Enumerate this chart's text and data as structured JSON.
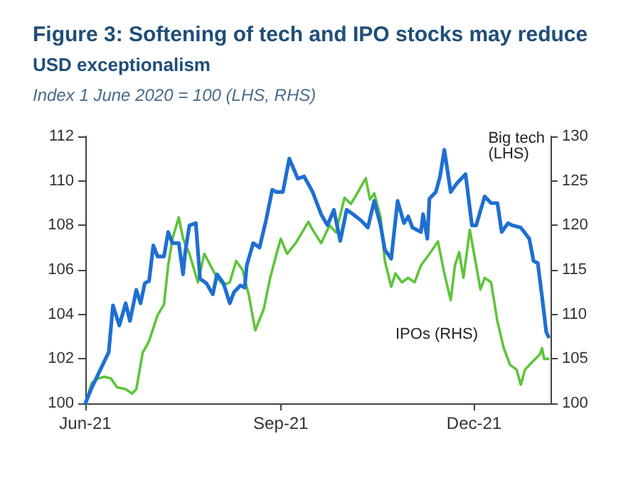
{
  "chart_data": {
    "type": "line",
    "title": "Figure 3: Softening of tech and IPO stocks may reduce\nUSD exceptionalism",
    "subtitle": "Index 1 June 2020 = 100 (LHS, RHS)",
    "xlim": [
      "2021-06-01",
      "2022-01-06"
    ],
    "xticks": [
      {
        "value": "2021-06-01",
        "label": "Jun-21"
      },
      {
        "value": "2021-09-01",
        "label": "Sep-21"
      },
      {
        "value": "2021-12-01",
        "label": "Dec-21"
      }
    ],
    "ylim": [
      100,
      112
    ],
    "yticks": [
      100,
      102,
      104,
      106,
      108,
      110,
      112
    ],
    "y2lim": [
      100,
      130
    ],
    "y2ticks": [
      100,
      105,
      110,
      115,
      120,
      125,
      130
    ],
    "grid": false,
    "marker": "none",
    "line_style": "solid",
    "series": [
      {
        "name": "Big tech (LHS)",
        "color": "#1f6fd1",
        "x": [
          "2021-06-01",
          "2021-06-04",
          "2021-06-09",
          "2021-06-12",
          "2021-06-14",
          "2021-06-17",
          "2021-06-20",
          "2021-06-22",
          "2021-06-25",
          "2021-06-27",
          "2021-06-29",
          "2021-07-01",
          "2021-07-03",
          "2021-07-05",
          "2021-07-08",
          "2021-07-10",
          "2021-07-12",
          "2021-07-15",
          "2021-07-17",
          "2021-07-18",
          "2021-07-20",
          "2021-07-23",
          "2021-07-25",
          "2021-07-28",
          "2021-07-31",
          "2021-08-02",
          "2021-08-05",
          "2021-08-08",
          "2021-08-10",
          "2021-08-13",
          "2021-08-15",
          "2021-08-16",
          "2021-08-19",
          "2021-08-22",
          "2021-08-25",
          "2021-08-28",
          "2021-08-30",
          "2021-09-02",
          "2021-09-05",
          "2021-09-09",
          "2021-09-12",
          "2021-09-16",
          "2021-09-20",
          "2021-09-23",
          "2021-09-26",
          "2021-09-29",
          "2021-10-02",
          "2021-10-05",
          "2021-10-09",
          "2021-10-12",
          "2021-10-15",
          "2021-10-18",
          "2021-10-20",
          "2021-10-23",
          "2021-10-26",
          "2021-10-29",
          "2021-10-31",
          "2021-11-02",
          "2021-11-06",
          "2021-11-07",
          "2021-11-09",
          "2021-11-10",
          "2021-11-13",
          "2021-11-15",
          "2021-11-17",
          "2021-11-20",
          "2021-11-23",
          "2021-11-27",
          "2021-11-30",
          "2021-12-02",
          "2021-12-06",
          "2021-12-09",
          "2021-12-12",
          "2021-12-14",
          "2021-12-17",
          "2021-12-19",
          "2021-12-23",
          "2021-12-27",
          "2021-12-29",
          "2021-12-31",
          "2022-01-02",
          "2022-01-04",
          "2022-01-05"
        ],
        "values": [
          100,
          100.7,
          101.7,
          102.3,
          104.4,
          103.5,
          104.5,
          103.7,
          105.1,
          104.5,
          105.4,
          105.5,
          107.1,
          106.6,
          106.6,
          107.7,
          107.2,
          107.2,
          105.8,
          106.8,
          108.0,
          108.1,
          105.6,
          105.4,
          104.9,
          105.8,
          105.4,
          104.5,
          105.0,
          105.3,
          105.2,
          106.2,
          107.2,
          107.0,
          108.2,
          109.6,
          109.5,
          109.5,
          111.0,
          110.1,
          110.2,
          109.5,
          108.5,
          108.0,
          108.7,
          107.3,
          108.7,
          108.5,
          108.2,
          107.9,
          109.1,
          108.0,
          106.9,
          106.5,
          109.1,
          108.1,
          108.4,
          107.9,
          107.7,
          108.5,
          107.4,
          109.2,
          109.5,
          110.2,
          111.4,
          109.5,
          109.9,
          110.3,
          108.0,
          108.0,
          109.3,
          109.0,
          109.0,
          107.7,
          108.1,
          108.0,
          107.9,
          107.4,
          106.4,
          106.3,
          104.8,
          103.2,
          103.0
        ]
      },
      {
        "name": "IPOs (RHS)",
        "color": "#5ec43a",
        "axis": "y2",
        "x": [
          "2021-06-01",
          "2021-06-04",
          "2021-06-07",
          "2021-06-10",
          "2021-06-13",
          "2021-06-16",
          "2021-06-20",
          "2021-06-23",
          "2021-06-25",
          "2021-06-28",
          "2021-07-01",
          "2021-07-05",
          "2021-07-08",
          "2021-07-10",
          "2021-07-12",
          "2021-07-15",
          "2021-07-17",
          "2021-07-20",
          "2021-07-24",
          "2021-07-27",
          "2021-07-31",
          "2021-08-02",
          "2021-08-05",
          "2021-08-08",
          "2021-08-11",
          "2021-08-14",
          "2021-08-17",
          "2021-08-20",
          "2021-08-24",
          "2021-08-27",
          "2021-08-30",
          "2021-09-01",
          "2021-09-04",
          "2021-09-08",
          "2021-09-11",
          "2021-09-14",
          "2021-09-16",
          "2021-09-20",
          "2021-09-24",
          "2021-09-27",
          "2021-10-01",
          "2021-10-04",
          "2021-10-07",
          "2021-10-11",
          "2021-10-13",
          "2021-10-15",
          "2021-10-18",
          "2021-10-20",
          "2021-10-23",
          "2021-10-25",
          "2021-10-28",
          "2021-10-31",
          "2021-11-03",
          "2021-11-06",
          "2021-11-10",
          "2021-11-14",
          "2021-11-17",
          "2021-11-20",
          "2021-11-22",
          "2021-11-24",
          "2021-11-26",
          "2021-11-29",
          "2021-12-02",
          "2021-12-04",
          "2021-12-06",
          "2021-12-09",
          "2021-12-12",
          "2021-12-15",
          "2021-12-18",
          "2021-12-21",
          "2021-12-23",
          "2021-12-25",
          "2021-12-29",
          "2022-01-01",
          "2022-01-02",
          "2022-01-03",
          "2022-01-05"
        ],
        "values": [
          100,
          102.3,
          102.8,
          103.0,
          102.8,
          101.8,
          101.6,
          101.1,
          101.6,
          105.7,
          107.0,
          109.9,
          111.1,
          115.5,
          118.5,
          120.9,
          118.5,
          116.8,
          113.6,
          116.8,
          115.0,
          114.1,
          113.3,
          113.6,
          116.0,
          115.0,
          112.1,
          108.2,
          110.6,
          114.1,
          116.8,
          118.5,
          116.8,
          118.0,
          119.2,
          120.4,
          119.5,
          118.0,
          120.0,
          119.2,
          123.1,
          122.4,
          123.6,
          125.3,
          122.9,
          123.6,
          120.9,
          116.0,
          113.1,
          114.6,
          113.6,
          114.1,
          113.6,
          115.5,
          116.8,
          118.2,
          114.6,
          111.6,
          115.5,
          117.0,
          114.1,
          119.5,
          115.5,
          112.8,
          114.1,
          113.6,
          109.2,
          106.2,
          104.3,
          103.8,
          102.1,
          103.8,
          104.8,
          105.5,
          106.2,
          105.0,
          105.0
        ]
      }
    ]
  }
}
